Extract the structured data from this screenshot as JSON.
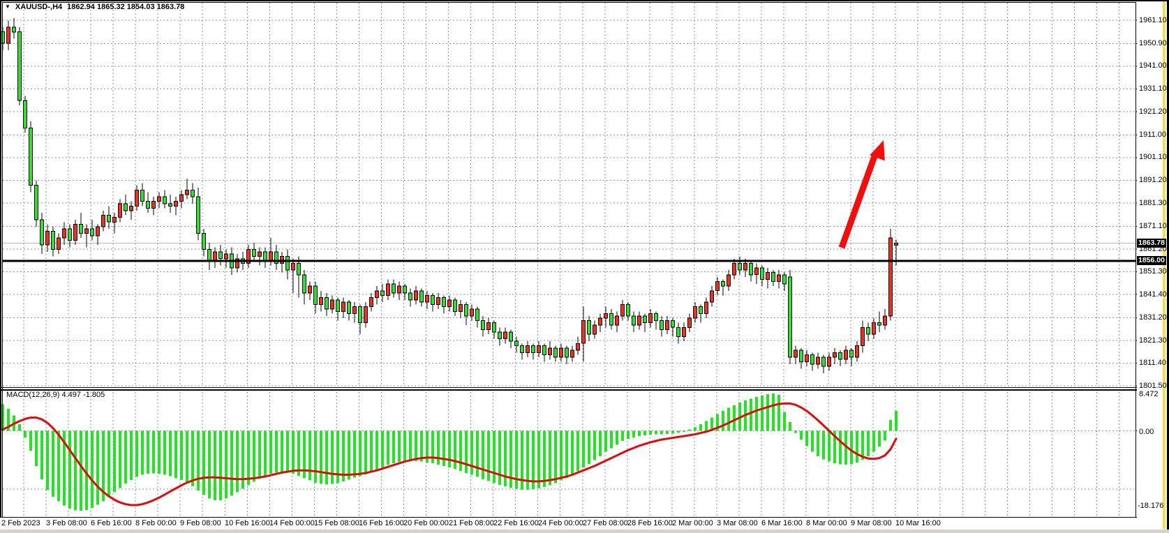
{
  "header": {
    "dropdown_icon": "▼",
    "symbol_period": "XAUUSD-,H4",
    "ohlc_text": "1862.94 1865.32 1854.03 1863.78"
  },
  "macd_panel": {
    "name": "MACD(12,26,9)",
    "values_text": "4.497 -1.805",
    "axis_max": "8.472",
    "axis_zero": "0.00",
    "axis_min": "-18.176"
  },
  "price_tags": {
    "current": "1863.78",
    "level": "1856.00"
  },
  "colors": {
    "bull": "#ef3124",
    "bear": "#2fe22f",
    "hist": "#22e522",
    "signal": "#e60808",
    "arrow": "#f40d0d",
    "grid": "#8496a9",
    "price_line": "#b9b9b9",
    "hline": "#000000",
    "tag_bg": "#000000",
    "tag_fg": "#ffffff",
    "window_accent": "#f5df4d",
    "chrome_gray": "#d6d3ce"
  },
  "chart_data": {
    "type": "candlestick",
    "symbol": "XAUUSD-",
    "timeframe": "H4",
    "title": "XAUUSD-,H4 1862.94 1865.32 1854.03 1863.78",
    "current_bar": {
      "open": 1862.94,
      "high": 1865.32,
      "low": 1854.03,
      "close": 1863.78
    },
    "horizontal_line_level": 1856.0,
    "current_price": 1863.78,
    "price_axis_values": [
      "1961.10",
      "1950.90",
      "1941.00",
      "1931.10",
      "1921.20",
      "1911.00",
      "1901.10",
      "1891.20",
      "1881.30",
      "1871.10",
      "1861.20",
      "1851.30",
      "1841.40",
      "1831.20",
      "1821.30",
      "1811.40",
      "1801.50"
    ],
    "time_labels": [
      "2 Feb 2023",
      "3 Feb 08:00",
      "6 Feb 16:00",
      "8 Feb 00:00",
      "9 Feb 08:00",
      "10 Feb 16:00",
      "14 Feb 00:00",
      "15 Feb 08:00",
      "16 Feb 16:00",
      "20 Feb 00:00",
      "21 Feb 08:00",
      "22 Feb 16:00",
      "24 Feb 00:00",
      "27 Feb 08:00",
      "28 Feb 16:00",
      "2 Mar 00:00",
      "3 Mar 08:00",
      "6 Mar 16:00",
      "8 Mar 00:00",
      "9 Mar 08:00",
      "10 Mar 16:00"
    ],
    "candles": [
      [
        1956,
        1958,
        1948,
        1951
      ],
      [
        1951,
        1961,
        1948,
        1958
      ],
      [
        1958,
        1962,
        1953,
        1956
      ],
      [
        1956,
        1958,
        1924,
        1926
      ],
      [
        1926,
        1928,
        1912,
        1914
      ],
      [
        1914,
        1917,
        1886,
        1889
      ],
      [
        1889,
        1891,
        1871,
        1874
      ],
      [
        1874,
        1877,
        1859,
        1863
      ],
      [
        1863,
        1872,
        1860,
        1869
      ],
      [
        1869,
        1871,
        1858,
        1861
      ],
      [
        1861,
        1868,
        1859,
        1866
      ],
      [
        1866,
        1873,
        1863,
        1870
      ],
      [
        1870,
        1872,
        1862,
        1865
      ],
      [
        1865,
        1874,
        1863,
        1872
      ],
      [
        1872,
        1877,
        1866,
        1868
      ],
      [
        1868,
        1872,
        1862,
        1870
      ],
      [
        1870,
        1874,
        1865,
        1867
      ],
      [
        1867,
        1872,
        1863,
        1871
      ],
      [
        1871,
        1878,
        1869,
        1876
      ],
      [
        1876,
        1880,
        1870,
        1873
      ],
      [
        1873,
        1877,
        1868,
        1875
      ],
      [
        1875,
        1883,
        1873,
        1881
      ],
      [
        1881,
        1885,
        1876,
        1878
      ],
      [
        1878,
        1882,
        1874,
        1880
      ],
      [
        1880,
        1889,
        1878,
        1887
      ],
      [
        1887,
        1890,
        1880,
        1882
      ],
      [
        1882,
        1886,
        1877,
        1879
      ],
      [
        1879,
        1884,
        1876,
        1882
      ],
      [
        1882,
        1886,
        1879,
        1884
      ],
      [
        1884,
        1887,
        1879,
        1881
      ],
      [
        1881,
        1885,
        1877,
        1880
      ],
      [
        1880,
        1884,
        1876,
        1882
      ],
      [
        1882,
        1887,
        1879,
        1885
      ],
      [
        1885,
        1892,
        1883,
        1887
      ],
      [
        1887,
        1890,
        1881,
        1884
      ],
      [
        1884,
        1888,
        1865,
        1868
      ],
      [
        1868,
        1870,
        1858,
        1861
      ],
      [
        1861,
        1864,
        1852,
        1856
      ],
      [
        1856,
        1862,
        1853,
        1860
      ],
      [
        1860,
        1863,
        1854,
        1857
      ],
      [
        1857,
        1861,
        1853,
        1859
      ],
      [
        1859,
        1862,
        1850,
        1853
      ],
      [
        1853,
        1859,
        1851,
        1857
      ],
      [
        1857,
        1860,
        1852,
        1855
      ],
      [
        1855,
        1863,
        1853,
        1861
      ],
      [
        1861,
        1864,
        1856,
        1858
      ],
      [
        1858,
        1862,
        1854,
        1860
      ],
      [
        1860,
        1862,
        1853,
        1856
      ],
      [
        1856,
        1866,
        1854,
        1860
      ],
      [
        1860,
        1863,
        1852,
        1855
      ],
      [
        1855,
        1860,
        1851,
        1858
      ],
      [
        1858,
        1861,
        1848,
        1852
      ],
      [
        1852,
        1857,
        1842,
        1855
      ],
      [
        1855,
        1858,
        1840,
        1850
      ],
      [
        1850,
        1852,
        1837,
        1842
      ],
      [
        1842,
        1847,
        1839,
        1845
      ],
      [
        1845,
        1847,
        1833,
        1837
      ],
      [
        1837,
        1843,
        1834,
        1840
      ],
      [
        1840,
        1842,
        1832,
        1835
      ],
      [
        1835,
        1841,
        1833,
        1839
      ],
      [
        1839,
        1840,
        1830,
        1834
      ],
      [
        1834,
        1840,
        1831,
        1838
      ],
      [
        1838,
        1839,
        1830,
        1833
      ],
      [
        1833,
        1838,
        1829,
        1836
      ],
      [
        1836,
        1837,
        1824,
        1829
      ],
      [
        1829,
        1838,
        1827,
        1836
      ],
      [
        1836,
        1842,
        1834,
        1840
      ],
      [
        1840,
        1845,
        1837,
        1843
      ],
      [
        1843,
        1846,
        1838,
        1841
      ],
      [
        1841,
        1848,
        1839,
        1846
      ],
      [
        1846,
        1848,
        1840,
        1842
      ],
      [
        1842,
        1847,
        1839,
        1845
      ],
      [
        1845,
        1846,
        1839,
        1842
      ],
      [
        1842,
        1844,
        1836,
        1839
      ],
      [
        1839,
        1845,
        1837,
        1843
      ],
      [
        1843,
        1844,
        1836,
        1838
      ],
      [
        1838,
        1843,
        1835,
        1841
      ],
      [
        1841,
        1842,
        1834,
        1837
      ],
      [
        1837,
        1842,
        1835,
        1840
      ],
      [
        1840,
        1841,
        1833,
        1836
      ],
      [
        1836,
        1841,
        1834,
        1839
      ],
      [
        1839,
        1840,
        1832,
        1834
      ],
      [
        1834,
        1839,
        1831,
        1837
      ],
      [
        1837,
        1838,
        1828,
        1832
      ],
      [
        1832,
        1837,
        1830,
        1835
      ],
      [
        1835,
        1836,
        1827,
        1830
      ],
      [
        1830,
        1832,
        1823,
        1826
      ],
      [
        1826,
        1831,
        1824,
        1829
      ],
      [
        1829,
        1830,
        1822,
        1825
      ],
      [
        1825,
        1827,
        1819,
        1822
      ],
      [
        1822,
        1827,
        1820,
        1825
      ],
      [
        1825,
        1826,
        1818,
        1821
      ],
      [
        1821,
        1823,
        1816,
        1819
      ],
      [
        1819,
        1820,
        1813,
        1816
      ],
      [
        1816,
        1821,
        1814,
        1819
      ],
      [
        1819,
        1820,
        1813,
        1816
      ],
      [
        1816,
        1821,
        1814,
        1819
      ],
      [
        1819,
        1820,
        1812,
        1815
      ],
      [
        1815,
        1821,
        1813,
        1818
      ],
      [
        1818,
        1819,
        1812,
        1814
      ],
      [
        1814,
        1820,
        1812,
        1818
      ],
      [
        1818,
        1819,
        1811,
        1814
      ],
      [
        1814,
        1819,
        1812,
        1817
      ],
      [
        1817,
        1823,
        1815,
        1820
      ],
      [
        1820,
        1836,
        1812,
        1830
      ],
      [
        1830,
        1832,
        1821,
        1824
      ],
      [
        1824,
        1830,
        1822,
        1828
      ],
      [
        1828,
        1833,
        1825,
        1831
      ],
      [
        1831,
        1836,
        1827,
        1833
      ],
      [
        1833,
        1835,
        1826,
        1828
      ],
      [
        1828,
        1834,
        1825,
        1832
      ],
      [
        1832,
        1839,
        1830,
        1837
      ],
      [
        1837,
        1838,
        1830,
        1832
      ],
      [
        1832,
        1834,
        1825,
        1828
      ],
      [
        1828,
        1834,
        1826,
        1832
      ],
      [
        1832,
        1833,
        1825,
        1829
      ],
      [
        1829,
        1835,
        1827,
        1833
      ],
      [
        1833,
        1834,
        1826,
        1830
      ],
      [
        1830,
        1832,
        1823,
        1826
      ],
      [
        1826,
        1832,
        1824,
        1830
      ],
      [
        1830,
        1831,
        1823,
        1827
      ],
      [
        1827,
        1829,
        1820,
        1823
      ],
      [
        1823,
        1829,
        1821,
        1827
      ],
      [
        1827,
        1833,
        1825,
        1831
      ],
      [
        1831,
        1838,
        1829,
        1836
      ],
      [
        1836,
        1837,
        1829,
        1833
      ],
      [
        1833,
        1840,
        1831,
        1838
      ],
      [
        1838,
        1845,
        1836,
        1843
      ],
      [
        1843,
        1849,
        1841,
        1847
      ],
      [
        1847,
        1848,
        1841,
        1845
      ],
      [
        1845,
        1852,
        1843,
        1850
      ],
      [
        1850,
        1857,
        1848,
        1855
      ],
      [
        1855,
        1858,
        1850,
        1852
      ],
      [
        1852,
        1857,
        1849,
        1855
      ],
      [
        1855,
        1856,
        1847,
        1850
      ],
      [
        1850,
        1855,
        1846,
        1853
      ],
      [
        1853,
        1854,
        1845,
        1848
      ],
      [
        1848,
        1853,
        1844,
        1851
      ],
      [
        1851,
        1852,
        1845,
        1847
      ],
      [
        1847,
        1852,
        1844,
        1850
      ],
      [
        1850,
        1851,
        1843,
        1846
      ],
      [
        1849,
        1852,
        1811,
        1814
      ],
      [
        1814,
        1819,
        1811,
        1817
      ],
      [
        1817,
        1818,
        1809,
        1812
      ],
      [
        1812,
        1817,
        1810,
        1815
      ],
      [
        1815,
        1816,
        1808,
        1811
      ],
      [
        1811,
        1816,
        1809,
        1814
      ],
      [
        1814,
        1815,
        1807,
        1810
      ],
      [
        1810,
        1816,
        1808,
        1814
      ],
      [
        1814,
        1818,
        1811,
        1816
      ],
      [
        1816,
        1817,
        1810,
        1813
      ],
      [
        1813,
        1819,
        1811,
        1817
      ],
      [
        1817,
        1818,
        1810,
        1814
      ],
      [
        1814,
        1821,
        1812,
        1819
      ],
      [
        1819,
        1830,
        1816,
        1827
      ],
      [
        1827,
        1829,
        1821,
        1824
      ],
      [
        1824,
        1831,
        1822,
        1829
      ],
      [
        1829,
        1834,
        1825,
        1828
      ],
      [
        1828,
        1835,
        1826,
        1832
      ],
      [
        1832,
        1870,
        1830,
        1866
      ],
      [
        1862.94,
        1865.32,
        1854.03,
        1863.78
      ]
    ],
    "macd": {
      "type": "histogram+signal-line",
      "params": [
        12,
        26,
        9
      ],
      "current_macd": 4.497,
      "current_signal": -1.805,
      "axis_max": 8.472,
      "axis_min": -18.176,
      "hist": [
        6,
        5,
        3.5,
        1.5,
        -1.5,
        -4.5,
        -8,
        -11,
        -13.5,
        -15,
        -16,
        -17,
        -17.7,
        -18.1,
        -18.2,
        -18,
        -17.5,
        -16.8,
        -16,
        -15,
        -14,
        -13,
        -12,
        -11.2,
        -10.5,
        -10,
        -9.8,
        -9.7,
        -9.8,
        -10,
        -10.3,
        -10.8,
        -11.2,
        -11.8,
        -12.6,
        -13.6,
        -14.6,
        -15.4,
        -15.8,
        -15.8,
        -15.4,
        -14.8,
        -14,
        -13.2,
        -12.4,
        -11.6,
        -10.9,
        -10.3,
        -9.8,
        -9.5,
        -9.4,
        -9.5,
        -9.8,
        -10.2,
        -10.8,
        -11.3,
        -11.8,
        -12.1,
        -12.2,
        -12.1,
        -11.9,
        -11.5,
        -11.1,
        -10.6,
        -10.3,
        -9.9,
        -9.4,
        -8.8,
        -8.3,
        -7.8,
        -7.4,
        -7.1,
        -6.9,
        -6.9,
        -6.9,
        -7.0,
        -7.2,
        -7.4,
        -7.7,
        -8.0,
        -8.3,
        -8.7,
        -9.1,
        -9.6,
        -10.0,
        -10.5,
        -11.0,
        -11.4,
        -11.9,
        -12.3,
        -12.6,
        -12.9,
        -13.2,
        -13.4,
        -13.4,
        -13.3,
        -13.1,
        -12.8,
        -12.4,
        -11.9,
        -11.3,
        -10.7,
        -10.0,
        -9.2,
        -8.3,
        -7.5,
        -6.7,
        -5.8,
        -4.8,
        -4.0,
        -3.2,
        -2.3,
        -1.8,
        -1.5,
        -1.2,
        -1.0,
        -0.9,
        -0.8,
        -0.8,
        -0.7,
        -0.6,
        -0.4,
        -0.2,
        0.3,
        0.8,
        1.5,
        2.2,
        3.0,
        3.8,
        4.5,
        5.2,
        5.8,
        6.4,
        6.9,
        7.3,
        7.7,
        8.0,
        8.3,
        8.472,
        8.2,
        4.3,
        2.0,
        -0.5,
        -2.0,
        -3.5,
        -4.8,
        -5.8,
        -6.5,
        -7.0,
        -7.4,
        -7.6,
        -7.7,
        -7.6,
        -7.2,
        -6.6,
        -5.8,
        -4.8,
        -3.6,
        -2.2,
        2.5,
        4.497
      ],
      "signal": [
        0.3,
        0.9,
        1.6,
        2.2,
        2.7,
        3.0,
        3.0,
        2.6,
        1.8,
        0.6,
        -0.9,
        -2.6,
        -4.4,
        -6.2,
        -8.0,
        -9.7,
        -11.3,
        -12.7,
        -13.9,
        -14.9,
        -15.7,
        -16.3,
        -16.7,
        -16.9,
        -16.9,
        -16.7,
        -16.3,
        -15.8,
        -15.2,
        -14.5,
        -13.8,
        -13.1,
        -12.4,
        -11.8,
        -11.3,
        -10.9,
        -10.7,
        -10.6,
        -10.6,
        -10.7,
        -10.8,
        -10.9,
        -11.0,
        -11.0,
        -10.9,
        -10.8,
        -10.6,
        -10.4,
        -10.1,
        -9.8,
        -9.5,
        -9.3,
        -9.1,
        -9.0,
        -9.0,
        -9.1,
        -9.2,
        -9.4,
        -9.6,
        -9.8,
        -9.9,
        -10.0,
        -10.0,
        -9.9,
        -9.8,
        -9.6,
        -9.3,
        -9.0,
        -8.6,
        -8.2,
        -7.8,
        -7.4,
        -7.0,
        -6.7,
        -6.4,
        -6.2,
        -6.1,
        -6.1,
        -6.2,
        -6.4,
        -6.6,
        -6.9,
        -7.2,
        -7.6,
        -8.0,
        -8.4,
        -8.8,
        -9.2,
        -9.6,
        -10.0,
        -10.4,
        -10.7,
        -11.0,
        -11.2,
        -11.4,
        -11.5,
        -11.5,
        -11.4,
        -11.2,
        -11.0,
        -10.7,
        -10.4,
        -10.0,
        -9.5,
        -9.0,
        -8.5,
        -8.0,
        -7.4,
        -6.8,
        -6.2,
        -5.6,
        -5.0,
        -4.4,
        -3.9,
        -3.4,
        -3.0,
        -2.6,
        -2.3,
        -2.0,
        -1.8,
        -1.6,
        -1.4,
        -1.2,
        -1.0,
        -0.8,
        -0.5,
        -0.2,
        0.2,
        0.7,
        1.2,
        1.8,
        2.4,
        3.0,
        3.6,
        4.1,
        4.6,
        5.0,
        5.4,
        5.8,
        6.1,
        6.2,
        6.2,
        5.9,
        5.3,
        4.5,
        3.5,
        2.4,
        1.2,
        0.0,
        -1.2,
        -2.4,
        -3.5,
        -4.5,
        -5.3,
        -5.9,
        -6.3,
        -6.4,
        -6.2,
        -5.6,
        -4.2,
        -1.805
      ]
    },
    "annotations": [
      {
        "type": "arrow",
        "direction": "up-right",
        "color": "#f40d0d"
      }
    ],
    "legend_position": "none",
    "grid": true
  }
}
